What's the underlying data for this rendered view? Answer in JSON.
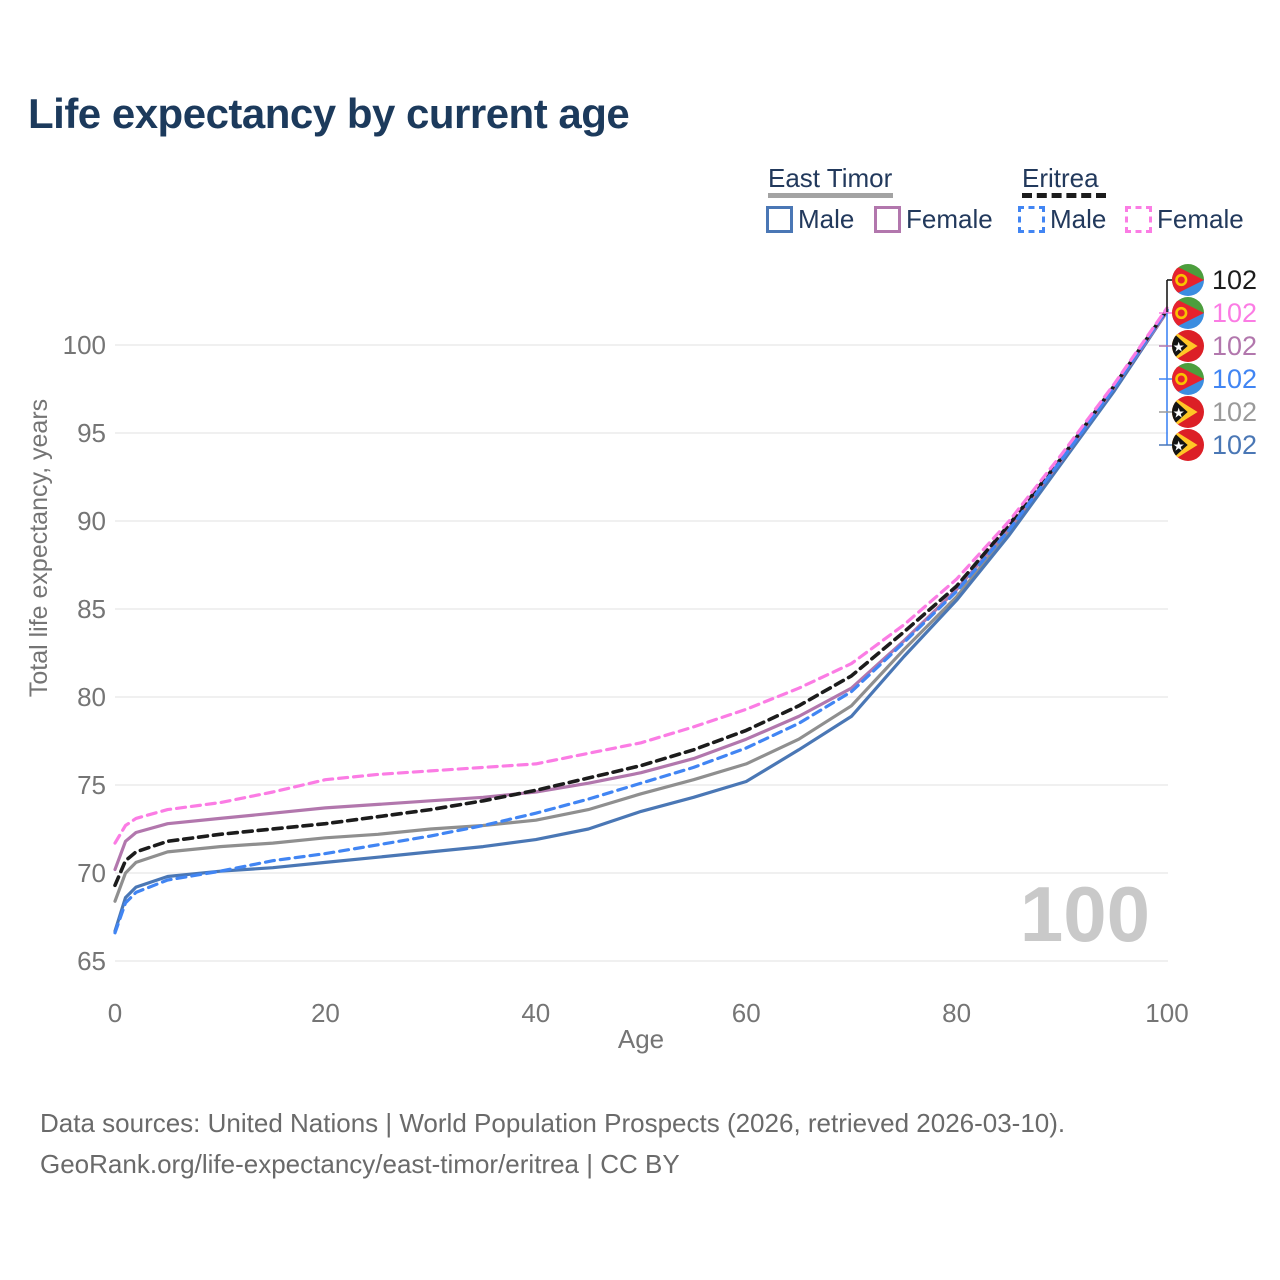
{
  "title": "Life expectancy by current age",
  "legend": {
    "groups": [
      {
        "label": "East Timor",
        "style": "solid",
        "underline_color": "#a3a3a3",
        "items": [
          {
            "label": "Male",
            "color": "#4a77b5",
            "dashed": false
          },
          {
            "label": "Female",
            "color": "#b277ad",
            "dashed": false
          }
        ]
      },
      {
        "label": "Eritrea",
        "style": "dashed",
        "underline_color": "#1c1c1c",
        "items": [
          {
            "label": "Male",
            "color": "#4185f3",
            "dashed": true
          },
          {
            "label": "Female",
            "color": "#fb7ce4",
            "dashed": true
          }
        ]
      }
    ]
  },
  "watermark": {
    "text": "100",
    "color": "#c9c9c9"
  },
  "end_labels": [
    {
      "country": "eritrea",
      "value": "102",
      "color": "#1c1c1c"
    },
    {
      "country": "eritrea",
      "value": "102",
      "color": "#fb7ce4"
    },
    {
      "country": "east-timor",
      "value": "102",
      "color": "#b277ad"
    },
    {
      "country": "eritrea",
      "value": "102",
      "color": "#4185f3"
    },
    {
      "country": "east-timor",
      "value": "102",
      "color": "#9a9a9a"
    },
    {
      "country": "east-timor",
      "value": "102",
      "color": "#4a77b5"
    }
  ],
  "footer": {
    "line1": "Data sources: United Nations | World Population Prospects (2026, retrieved 2026-03-10).",
    "line2": "GeoRank.org/life-expectancy/east-timor/eritrea | CC BY"
  },
  "chart_data": {
    "type": "line",
    "title": "Life expectancy by current age",
    "xlabel": "Age",
    "ylabel": "Total life expectancy, years",
    "xlim": [
      0,
      100
    ],
    "ylim": [
      65,
      102.5
    ],
    "xticks": [
      0,
      20,
      40,
      60,
      80,
      100
    ],
    "yticks": [
      65,
      70,
      75,
      80,
      85,
      90,
      95,
      100
    ],
    "grid": "horizontal",
    "legend_position": "top-right",
    "x": [
      0,
      1,
      2,
      5,
      10,
      15,
      20,
      25,
      30,
      35,
      40,
      45,
      50,
      55,
      60,
      65,
      70,
      75,
      80,
      85,
      90,
      95,
      100
    ],
    "series": [
      {
        "name": "East Timor — Total",
        "color": "#8f8f8f",
        "dashed": false,
        "values": [
          68.4,
          70.0,
          70.6,
          71.2,
          71.5,
          71.7,
          72.0,
          72.2,
          72.5,
          72.7,
          73.0,
          73.6,
          74.5,
          75.3,
          76.2,
          77.6,
          79.5,
          82.7,
          85.7,
          89.4,
          93.4,
          97.5,
          101.9
        ]
      },
      {
        "name": "East Timor — Male",
        "color": "#4a77b5",
        "dashed": false,
        "values": [
          66.7,
          68.6,
          69.2,
          69.8,
          70.1,
          70.3,
          70.6,
          70.9,
          71.2,
          71.5,
          71.9,
          72.5,
          73.5,
          74.3,
          75.2,
          77.0,
          78.9,
          82.3,
          85.5,
          89.2,
          93.3,
          97.4,
          101.9
        ]
      },
      {
        "name": "East Timor — Female",
        "color": "#b277ad",
        "dashed": false,
        "values": [
          70.2,
          71.8,
          72.3,
          72.8,
          73.1,
          73.4,
          73.7,
          73.9,
          74.1,
          74.3,
          74.6,
          75.1,
          75.7,
          76.5,
          77.6,
          78.9,
          80.5,
          83.2,
          86.1,
          89.6,
          93.5,
          97.6,
          101.9
        ]
      },
      {
        "name": "Eritrea — Total",
        "color": "#1c1c1c",
        "dashed": true,
        "values": [
          69.3,
          70.7,
          71.2,
          71.8,
          72.2,
          72.5,
          72.8,
          73.2,
          73.6,
          74.1,
          74.7,
          75.4,
          76.1,
          77.0,
          78.1,
          79.5,
          81.2,
          83.7,
          86.3,
          89.8,
          93.6,
          97.7,
          102.0
        ]
      },
      {
        "name": "Eritrea — Male",
        "color": "#4185f3",
        "dashed": true,
        "values": [
          66.6,
          68.3,
          68.9,
          69.6,
          70.1,
          70.7,
          71.1,
          71.6,
          72.1,
          72.7,
          73.4,
          74.2,
          75.1,
          76.0,
          77.1,
          78.5,
          80.3,
          83.1,
          86.0,
          89.5,
          93.5,
          97.6,
          102.0
        ]
      },
      {
        "name": "Eritrea — Female",
        "color": "#fb7ce4",
        "dashed": true,
        "values": [
          71.7,
          72.7,
          73.1,
          73.6,
          74.0,
          74.6,
          75.3,
          75.6,
          75.8,
          76.0,
          76.2,
          76.8,
          77.4,
          78.3,
          79.3,
          80.5,
          81.9,
          84.1,
          86.7,
          90.0,
          93.8,
          97.8,
          102.1
        ]
      }
    ]
  },
  "axis_colors": {
    "tick": "#757575",
    "grid": "#ececec"
  }
}
